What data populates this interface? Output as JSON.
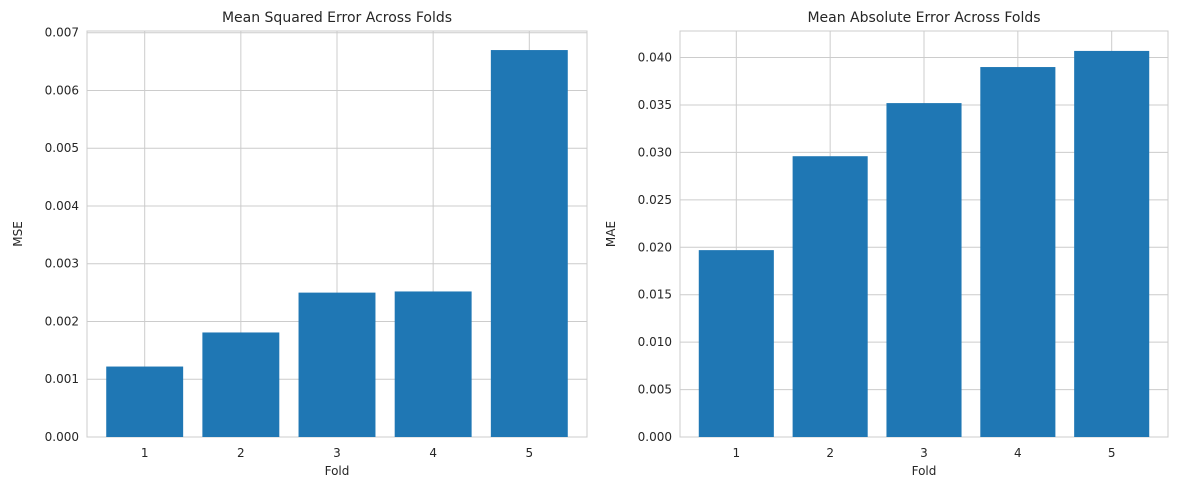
{
  "chart_data": [
    {
      "type": "bar",
      "title": "Mean Squared Error Across Folds",
      "xlabel": "Fold",
      "ylabel": "MSE",
      "categories": [
        "1",
        "2",
        "3",
        "4",
        "5"
      ],
      "values": [
        0.00122,
        0.00181,
        0.0025,
        0.00252,
        0.0067
      ],
      "ylim": [
        0,
        0.00703
      ],
      "yticks": [
        0.0,
        0.001,
        0.002,
        0.003,
        0.004,
        0.005,
        0.006,
        0.007
      ],
      "ytick_labels": [
        "0.000",
        "0.001",
        "0.002",
        "0.003",
        "0.004",
        "0.005",
        "0.006",
        "0.007"
      ],
      "grid": true,
      "bar_color": "#1f77b4"
    },
    {
      "type": "bar",
      "title": "Mean Absolute Error Across Folds",
      "xlabel": "Fold",
      "ylabel": "MAE",
      "categories": [
        "1",
        "2",
        "3",
        "4",
        "5"
      ],
      "values": [
        0.0197,
        0.0296,
        0.0352,
        0.039,
        0.0407
      ],
      "ylim": [
        0,
        0.0428
      ],
      "yticks": [
        0.0,
        0.005,
        0.01,
        0.015,
        0.02,
        0.025,
        0.03,
        0.035,
        0.04
      ],
      "ytick_labels": [
        "0.000",
        "0.005",
        "0.010",
        "0.015",
        "0.020",
        "0.025",
        "0.030",
        "0.035",
        "0.040"
      ],
      "grid": true,
      "bar_color": "#1f77b4"
    }
  ]
}
